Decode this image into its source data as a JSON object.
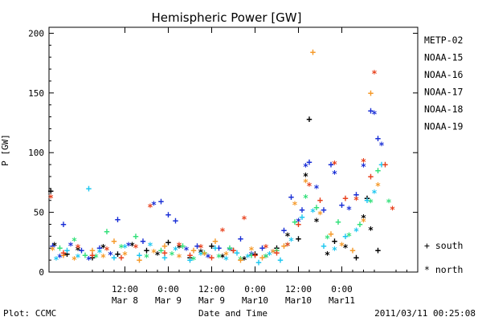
{
  "chart_data": {
    "type": "scatter",
    "title": "Hemispheric Power [GW]",
    "ylabel": "P [GW]",
    "xlabel": "Date and Time",
    "ylim": [
      0,
      205
    ],
    "xlim_hours": [
      -9,
      93
    ],
    "y_ticks": [
      "0",
      "50",
      "100",
      "150",
      "200"
    ],
    "x_ticks": [
      {
        "time": "12:00",
        "date": "Mar 8"
      },
      {
        "time": "0:00",
        "date": "Mar 9"
      },
      {
        "time": "12:00",
        "date": "Mar 9"
      },
      {
        "time": "0:00",
        "date": "Mar10"
      },
      {
        "time": "12:00",
        "date": "Mar10"
      },
      {
        "time": "0:00",
        "date": "Mar11"
      }
    ],
    "legend": [
      {
        "name": "METP-02",
        "color": "#000000"
      },
      {
        "name": "NOAA-15",
        "color": "#1a2fd6"
      },
      {
        "name": "NOAA-16",
        "color": "#1ec7f0"
      },
      {
        "name": "NOAA-17",
        "color": "#33e07a"
      },
      {
        "name": "NOAA-18",
        "color": "#f59a2a"
      },
      {
        "name": "NOAA-19",
        "color": "#e8401c"
      }
    ],
    "hemisphere_key": [
      {
        "symbol": "+",
        "label": "south"
      },
      {
        "symbol": "*",
        "label": "north"
      }
    ],
    "footer_left": "Plot: CCMC",
    "footer_right": "2011/03/11 00:25:08",
    "series": [
      {
        "name": "METP-02",
        "color": "#000000",
        "points": [
          [
            -8.5,
            68,
            "+"
          ],
          [
            -7.5,
            22,
            "*"
          ],
          [
            -4,
            15,
            "+"
          ],
          [
            -1,
            18,
            "*"
          ],
          [
            3,
            12,
            "+"
          ],
          [
            6,
            20,
            "*"
          ],
          [
            10,
            15,
            "+"
          ],
          [
            14,
            22,
            "*"
          ],
          [
            18,
            18,
            "+"
          ],
          [
            21,
            14,
            "*"
          ],
          [
            24,
            25,
            "+"
          ],
          [
            27,
            20,
            "*"
          ],
          [
            30,
            12,
            "+"
          ],
          [
            33,
            16,
            "*"
          ],
          [
            36,
            22,
            "+"
          ],
          [
            39,
            12,
            "*"
          ],
          [
            42,
            18,
            "+"
          ],
          [
            45,
            10,
            "*"
          ],
          [
            48,
            15,
            "+"
          ],
          [
            51,
            12,
            "*"
          ],
          [
            54,
            20,
            "+"
          ],
          [
            57,
            30,
            "*"
          ],
          [
            60,
            28,
            "+"
          ],
          [
            62,
            80,
            "*"
          ],
          [
            63,
            128,
            "+"
          ],
          [
            65,
            42,
            "*"
          ],
          [
            68,
            14,
            "*"
          ],
          [
            70,
            26,
            "+"
          ],
          [
            73,
            20,
            "*"
          ],
          [
            76,
            12,
            "+"
          ],
          [
            78,
            45,
            "*"
          ],
          [
            79,
            62,
            "+"
          ],
          [
            80,
            35,
            "*"
          ],
          [
            82,
            18,
            "+"
          ]
        ]
      },
      {
        "name": "NOAA-15",
        "color": "#1a2fd6",
        "points": [
          [
            -8,
            22,
            "+"
          ],
          [
            -6,
            12,
            "*"
          ],
          [
            -5,
            40,
            "+"
          ],
          [
            -3,
            22,
            "*"
          ],
          [
            0,
            18,
            "+"
          ],
          [
            2,
            10,
            "*"
          ],
          [
            5,
            20,
            "+"
          ],
          [
            8,
            14,
            "*"
          ],
          [
            10,
            44,
            "+"
          ],
          [
            13,
            22,
            "*"
          ],
          [
            17,
            26,
            "+"
          ],
          [
            20,
            56,
            "*"
          ],
          [
            22,
            59,
            "+"
          ],
          [
            24,
            48,
            "+"
          ],
          [
            26,
            43,
            "+"
          ],
          [
            29,
            18,
            "*"
          ],
          [
            32,
            22,
            "+"
          ],
          [
            35,
            12,
            "*"
          ],
          [
            38,
            20,
            "+"
          ],
          [
            41,
            18,
            "*"
          ],
          [
            44,
            28,
            "+"
          ],
          [
            47,
            14,
            "*"
          ],
          [
            50,
            20,
            "+"
          ],
          [
            53,
            16,
            "*"
          ],
          [
            56,
            35,
            "+"
          ],
          [
            58,
            63,
            "+"
          ],
          [
            60,
            42,
            "*"
          ],
          [
            61,
            52,
            "+"
          ],
          [
            62,
            88,
            "*"
          ],
          [
            63,
            92,
            "+"
          ],
          [
            65,
            70,
            "*"
          ],
          [
            67,
            52,
            "+"
          ],
          [
            69,
            90,
            "+"
          ],
          [
            70,
            82,
            "*"
          ],
          [
            72,
            56,
            "+"
          ],
          [
            74,
            52,
            "*"
          ],
          [
            76,
            65,
            "+"
          ],
          [
            78,
            88,
            "*"
          ],
          [
            80,
            135,
            "+"
          ],
          [
            81,
            132,
            "*"
          ],
          [
            82,
            112,
            "+"
          ],
          [
            83,
            106,
            "*"
          ]
        ]
      },
      {
        "name": "NOAA-16",
        "color": "#1ec7f0",
        "points": [
          [
            -7,
            10,
            "*"
          ],
          [
            -4,
            18,
            "+"
          ],
          [
            -1,
            12,
            "*"
          ],
          [
            2,
            70,
            "+"
          ],
          [
            5,
            16,
            "*"
          ],
          [
            9,
            12,
            "+"
          ],
          [
            12,
            20,
            "*"
          ],
          [
            16,
            14,
            "+"
          ],
          [
            19,
            22,
            "*"
          ],
          [
            23,
            12,
            "+"
          ],
          [
            26,
            18,
            "*"
          ],
          [
            30,
            10,
            "+"
          ],
          [
            33,
            14,
            "*"
          ],
          [
            37,
            20,
            "+"
          ],
          [
            40,
            10,
            "*"
          ],
          [
            43,
            16,
            "+"
          ],
          [
            46,
            12,
            "*"
          ],
          [
            49,
            8,
            "+"
          ],
          [
            52,
            14,
            "*"
          ],
          [
            55,
            10,
            "+"
          ],
          [
            58,
            26,
            "*"
          ],
          [
            61,
            46,
            "+"
          ],
          [
            64,
            50,
            "*"
          ],
          [
            67,
            22,
            "+"
          ],
          [
            70,
            18,
            "*"
          ],
          [
            73,
            30,
            "+"
          ],
          [
            76,
            34,
            "*"
          ],
          [
            79,
            60,
            "+"
          ],
          [
            81,
            66,
            "*"
          ],
          [
            83,
            90,
            "+"
          ]
        ]
      },
      {
        "name": "NOAA-17",
        "color": "#33e07a",
        "points": [
          [
            -6,
            20,
            "+"
          ],
          [
            -2,
            26,
            "*"
          ],
          [
            1,
            14,
            "+"
          ],
          [
            4,
            12,
            "*"
          ],
          [
            7,
            34,
            "+"
          ],
          [
            11,
            20,
            "*"
          ],
          [
            15,
            30,
            "+"
          ],
          [
            18,
            12,
            "*"
          ],
          [
            22,
            18,
            "+"
          ],
          [
            25,
            14,
            "*"
          ],
          [
            28,
            22,
            "+"
          ],
          [
            31,
            10,
            "*"
          ],
          [
            34,
            16,
            "+"
          ],
          [
            38,
            12,
            "*"
          ],
          [
            41,
            20,
            "+"
          ],
          [
            44,
            10,
            "*"
          ],
          [
            47,
            14,
            "+"
          ],
          [
            51,
            12,
            "*"
          ],
          [
            54,
            18,
            "+"
          ],
          [
            57,
            22,
            "*"
          ],
          [
            59,
            42,
            "+"
          ],
          [
            62,
            62,
            "*"
          ],
          [
            65,
            54,
            "+"
          ],
          [
            68,
            28,
            "*"
          ],
          [
            71,
            42,
            "+"
          ],
          [
            74,
            30,
            "*"
          ],
          [
            77,
            40,
            "+"
          ],
          [
            80,
            58,
            "*"
          ],
          [
            82,
            85,
            "+"
          ],
          [
            85,
            58,
            "*"
          ]
        ]
      },
      {
        "name": "NOAA-18",
        "color": "#f59a2a",
        "points": [
          [
            -8,
            18,
            "*"
          ],
          [
            -5,
            14,
            "+"
          ],
          [
            -2,
            10,
            "*"
          ],
          [
            3,
            18,
            "+"
          ],
          [
            6,
            12,
            "*"
          ],
          [
            9,
            26,
            "+"
          ],
          [
            12,
            14,
            "*"
          ],
          [
            16,
            10,
            "+"
          ],
          [
            20,
            16,
            "*"
          ],
          [
            23,
            22,
            "+"
          ],
          [
            27,
            12,
            "*"
          ],
          [
            31,
            18,
            "+"
          ],
          [
            34,
            14,
            "*"
          ],
          [
            37,
            26,
            "+"
          ],
          [
            40,
            14,
            "*"
          ],
          [
            44,
            10,
            "+"
          ],
          [
            47,
            18,
            "*"
          ],
          [
            50,
            12,
            "+"
          ],
          [
            53,
            16,
            "*"
          ],
          [
            56,
            22,
            "+"
          ],
          [
            59,
            56,
            "*"
          ],
          [
            62,
            75,
            "*"
          ],
          [
            64,
            184,
            "+"
          ],
          [
            66,
            48,
            "*"
          ],
          [
            69,
            32,
            "+"
          ],
          [
            72,
            22,
            "*"
          ],
          [
            75,
            18,
            "+"
          ],
          [
            78,
            42,
            "*"
          ],
          [
            80,
            150,
            "+"
          ],
          [
            82,
            72,
            "*"
          ]
        ]
      },
      {
        "name": "NOAA-19",
        "color": "#e8401c",
        "points": [
          [
            -8.5,
            62,
            "*"
          ],
          [
            -5,
            16,
            "+"
          ],
          [
            -1,
            20,
            "*"
          ],
          [
            3,
            14,
            "+"
          ],
          [
            7,
            18,
            "*"
          ],
          [
            11,
            12,
            "+"
          ],
          [
            15,
            20,
            "*"
          ],
          [
            19,
            54,
            "*"
          ],
          [
            23,
            16,
            "+"
          ],
          [
            27,
            22,
            "*"
          ],
          [
            30,
            14,
            "+"
          ],
          [
            33,
            20,
            "*"
          ],
          [
            36,
            12,
            "+"
          ],
          [
            39,
            34,
            "*"
          ],
          [
            42,
            18,
            "+"
          ],
          [
            45,
            44,
            "*"
          ],
          [
            48,
            14,
            "+"
          ],
          [
            51,
            20,
            "*"
          ],
          [
            54,
            16,
            "+"
          ],
          [
            57,
            22,
            "*"
          ],
          [
            60,
            40,
            "+"
          ],
          [
            63,
            72,
            "*"
          ],
          [
            66,
            60,
            "+"
          ],
          [
            70,
            90,
            "*"
          ],
          [
            73,
            62,
            "+"
          ],
          [
            76,
            60,
            "*"
          ],
          [
            78,
            92,
            "*"
          ],
          [
            80,
            80,
            "+"
          ],
          [
            81,
            166,
            "*"
          ],
          [
            84,
            90,
            "+"
          ],
          [
            86,
            52,
            "*"
          ]
        ]
      }
    ]
  }
}
